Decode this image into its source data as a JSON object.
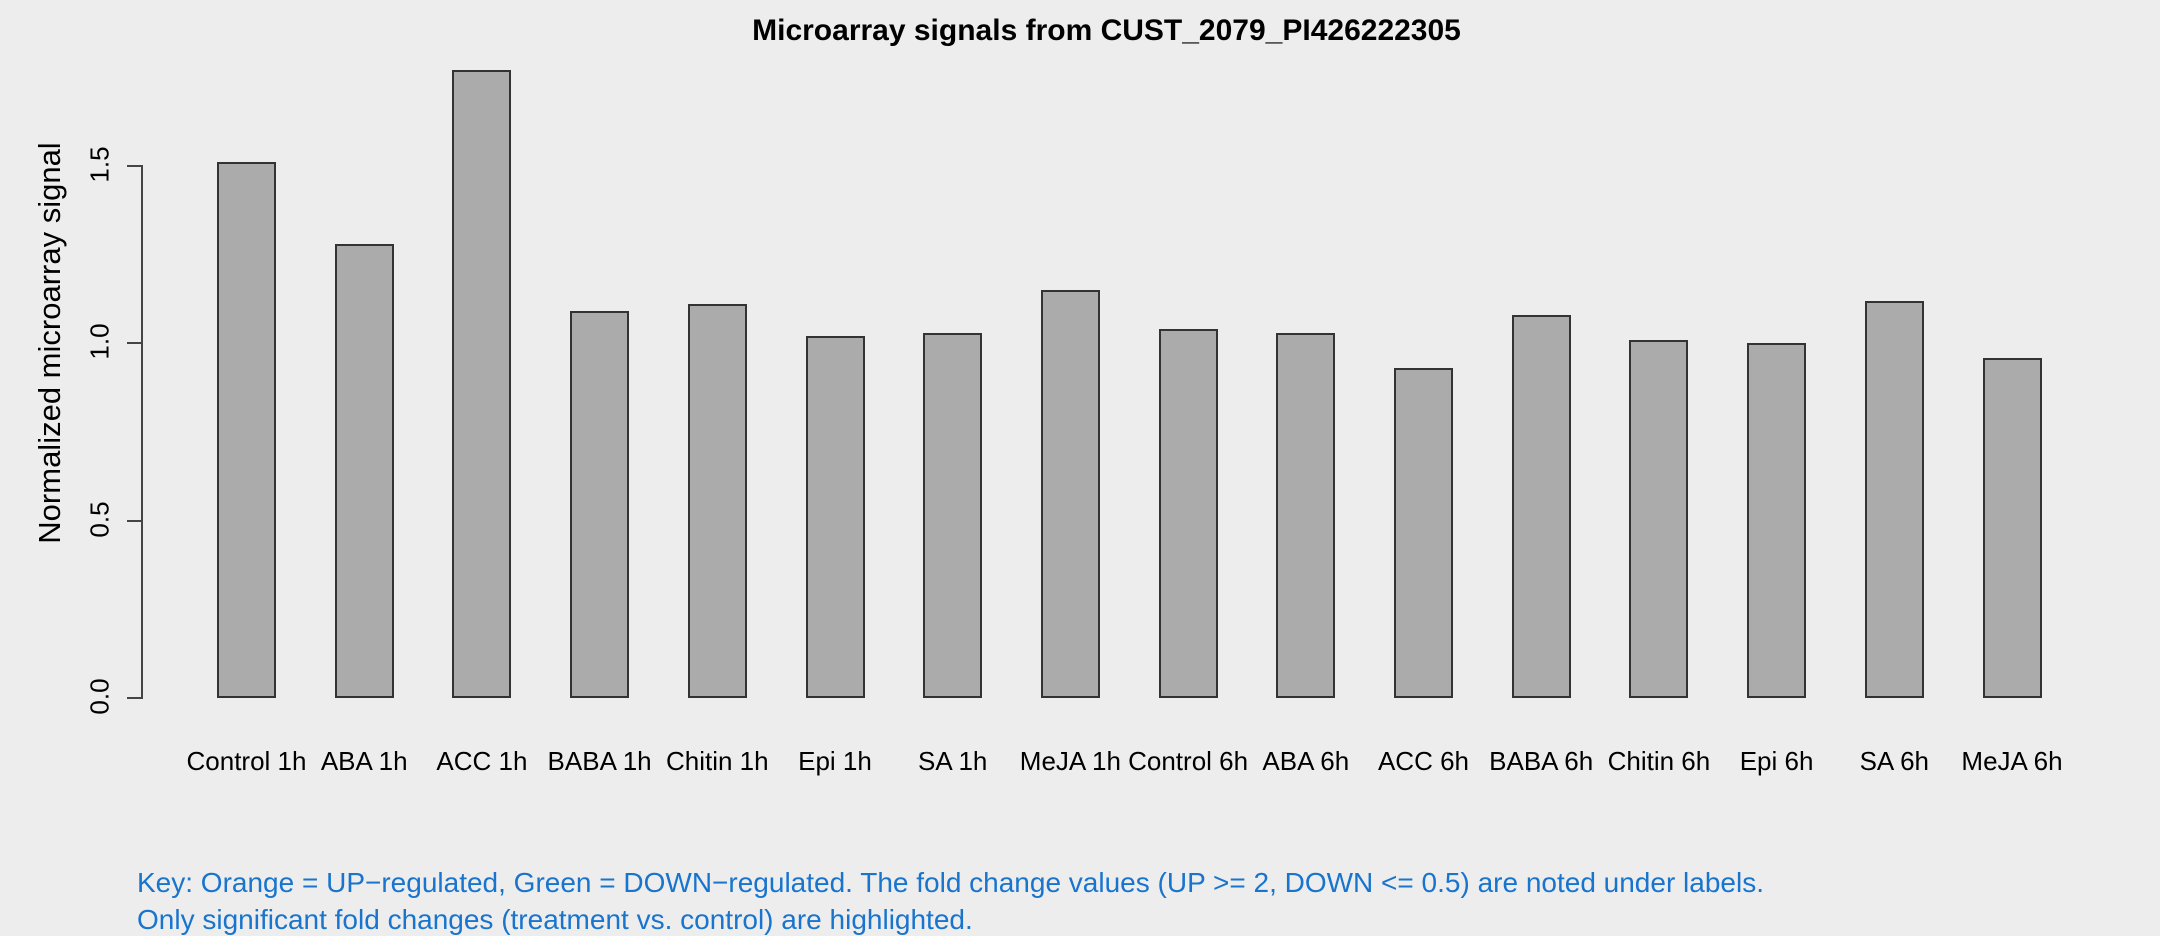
{
  "chart_data": {
    "type": "bar",
    "title": "Microarray signals from CUST_2079_PI426222305",
    "xlabel": "",
    "ylabel": "Normalized microarray signal",
    "categories": [
      "Control 1h",
      "ABA 1h",
      "ACC 1h",
      "BABA 1h",
      "Chitin 1h",
      "Epi 1h",
      "SA 1h",
      "MeJA 1h",
      "Control 6h",
      "ABA 6h",
      "ACC 6h",
      "BABA 6h",
      "Chitin 6h",
      "Epi 6h",
      "SA 6h",
      "MeJA 6h"
    ],
    "values": [
      1.51,
      1.28,
      1.77,
      1.09,
      1.11,
      1.02,
      1.03,
      1.15,
      1.04,
      1.03,
      0.93,
      1.08,
      1.01,
      1.0,
      1.12,
      0.96
    ],
    "ylim": [
      0,
      1.77
    ],
    "yticks": [
      0.0,
      0.5,
      1.0,
      1.5
    ],
    "ytick_labels": [
      "0.0",
      "0.5",
      "1.0",
      "1.5"
    ],
    "grid": "off",
    "legend": "none",
    "bar_color": "#ABABAB",
    "bar_border_color": "#333333",
    "background_color": "#EDEDED"
  },
  "key": {
    "color": "#1874CD",
    "lines": [
      "Key: Orange = UP−regulated, Green = DOWN−regulated. The fold change values (UP >= 2, DOWN <= 0.5) are noted under labels.",
      "Only significant fold changes (treatment vs. control) are highlighted."
    ]
  }
}
